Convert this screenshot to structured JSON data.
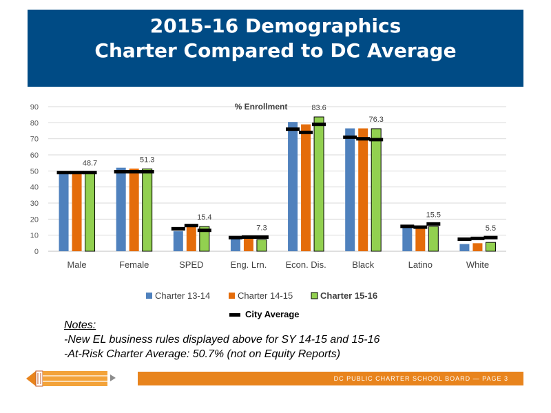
{
  "header": {
    "title_line1": "2015-16 Demographics",
    "title_line2": "Charter Compared to DC Average"
  },
  "chart_data": {
    "type": "bar",
    "title": "% Enrollment",
    "categories": [
      "Male",
      "Female",
      "SPED",
      "Eng. Lrn.",
      "Econ. Dis.",
      "Black",
      "Latino",
      "White"
    ],
    "ylim": [
      0,
      90
    ],
    "yticks": [
      0,
      10,
      20,
      30,
      40,
      50,
      60,
      70,
      80,
      90
    ],
    "grid": true,
    "series": [
      {
        "name": "Charter 13-14",
        "color": "#4f81bd",
        "values": [
          48,
          52,
          12.5,
          8,
          80.5,
          76.5,
          16,
          4.5
        ]
      },
      {
        "name": "Charter 14-15",
        "color": "#e46c0a",
        "values": [
          48.5,
          51.5,
          15.5,
          9,
          79,
          76.5,
          15.5,
          5
        ]
      },
      {
        "name": "Charter 15-16",
        "color": "#92d050",
        "values": [
          48.7,
          51.3,
          15.4,
          7.3,
          83.6,
          76.3,
          15.5,
          5.5
        ]
      }
    ],
    "data_labels": [
      "48.7",
      "51.3",
      "15.4",
      "7.3",
      "83.6",
      "76.3",
      "15.5",
      "5.5"
    ],
    "city_average": {
      "name": "City Average",
      "color": "#000000",
      "values": [
        [
          49,
          49,
          49
        ],
        [
          49.5,
          49.5,
          49.5
        ],
        [
          14,
          16,
          13
        ],
        [
          8.5,
          8.8,
          8.8
        ],
        [
          76,
          74,
          79
        ],
        [
          71,
          70,
          69.5
        ],
        [
          15.5,
          15,
          17
        ],
        [
          7.5,
          8,
          8.5
        ]
      ]
    },
    "legend_position": "bottom"
  },
  "notes": {
    "heading": "Notes:",
    "line1": "-New EL business rules displayed above for SY 14-15 and 15-16",
    "line2": "-At-Risk Charter Average: 50.7% (not on Equity Reports)"
  },
  "footer": {
    "text": "DC PUBLIC CHARTER SCHOOL BOARD — PAGE 3"
  }
}
